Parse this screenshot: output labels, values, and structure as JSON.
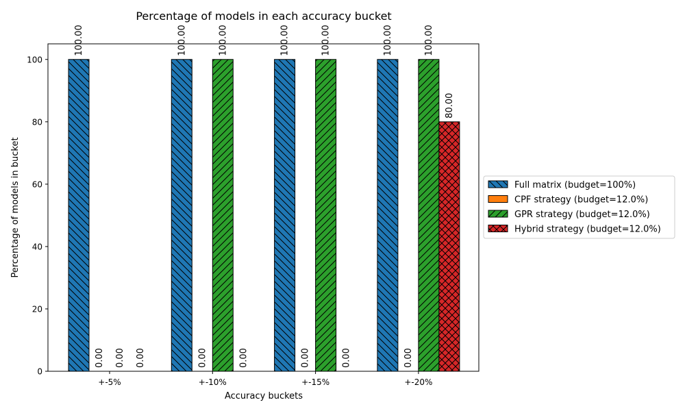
{
  "chart_data": {
    "type": "bar",
    "title": "Percentage of models in each accuracy bucket",
    "xlabel": "Accuracy buckets",
    "ylabel": "Percentage of models in bucket",
    "categories": [
      "+-5%",
      "+-10%",
      "+-15%",
      "+-20%"
    ],
    "ylim": [
      0,
      105
    ],
    "yticks": [
      0,
      20,
      40,
      60,
      80,
      100
    ],
    "grid": false,
    "legend_position": "right",
    "series": [
      {
        "name": "Full matrix (budget=100%)",
        "values": [
          100,
          100,
          100,
          100
        ],
        "color": "#1f77b4",
        "hatch": "back-diagonal"
      },
      {
        "name": "CPF strategy (budget=12.0%)",
        "values": [
          0,
          0,
          0,
          0
        ],
        "color": "#ff7f0e",
        "hatch": "none"
      },
      {
        "name": "GPR strategy (budget=12.0%)",
        "values": [
          0,
          100,
          100,
          100
        ],
        "color": "#2ca02c",
        "hatch": "forward-diagonal"
      },
      {
        "name": "Hybrid strategy (budget=12.0%)",
        "values": [
          0,
          0,
          0,
          80
        ],
        "color": "#d62728",
        "hatch": "cross"
      }
    ],
    "data_labels": [
      [
        "100.00",
        "100.00",
        "100.00",
        "100.00"
      ],
      [
        "0.00",
        "0.00",
        "0.00",
        "0.00"
      ],
      [
        "0.00",
        "100.00",
        "100.00",
        "100.00"
      ],
      [
        "0.00",
        "0.00",
        "0.00",
        "80.00"
      ]
    ]
  }
}
